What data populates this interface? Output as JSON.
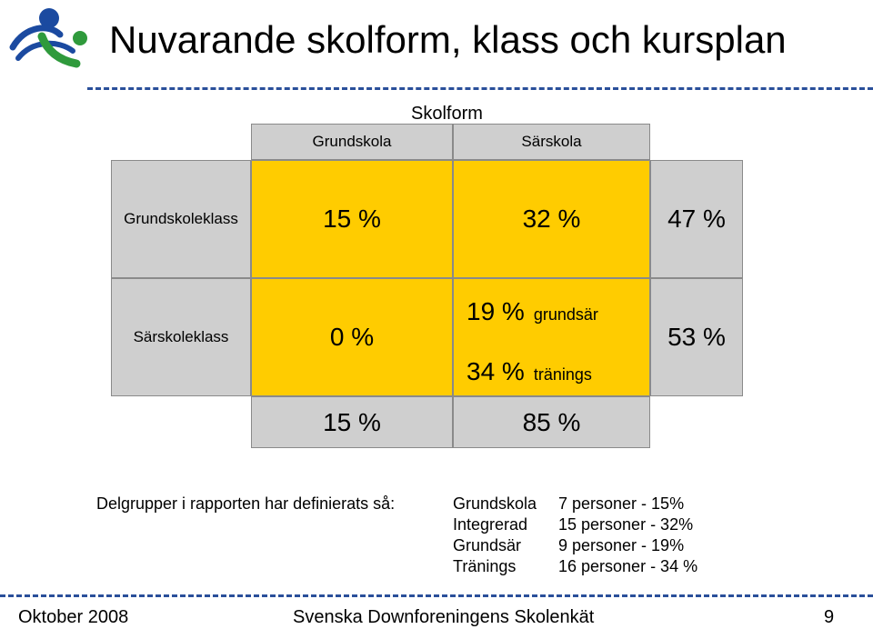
{
  "slide": {
    "title": "Nuvarande skolform, klass och kursplan",
    "page_number": "9"
  },
  "table": {
    "group_header": "Skolform",
    "col_headers": [
      "Grundskola",
      "Särskola"
    ],
    "rows": [
      {
        "label": "Grundskoleklass",
        "grundskola": "15 %",
        "sarskola": "32 %",
        "total": "47 %"
      },
      {
        "label": "Särskoleklass",
        "grundskola": "0 %",
        "sarskola_parts": [
          {
            "value": "19 %",
            "note": "grundsär"
          },
          {
            "value": "34 %",
            "note": "tränings"
          }
        ],
        "total": "53 %"
      }
    ],
    "col_totals": [
      "15 %",
      "85 %"
    ]
  },
  "legend": {
    "intro": "Delgrupper i rapporten har definierats så:",
    "items": [
      {
        "name": "Grundskola",
        "desc": "7 personer - 15%"
      },
      {
        "name": "Integrerad",
        "desc": "15 personer - 32%"
      },
      {
        "name": "Grundsär",
        "desc": "9 personer - 19%"
      },
      {
        "name": "Tränings",
        "desc": "16 personer - 34 %"
      }
    ]
  },
  "footer": {
    "date": "Oktober 2008",
    "org": "Svenska Downforeningens Skolenkät"
  },
  "colors": {
    "highlight": "#ffcc00",
    "cell_gray": "#cfcfcf",
    "rule_blue": "#2a4f9a"
  }
}
